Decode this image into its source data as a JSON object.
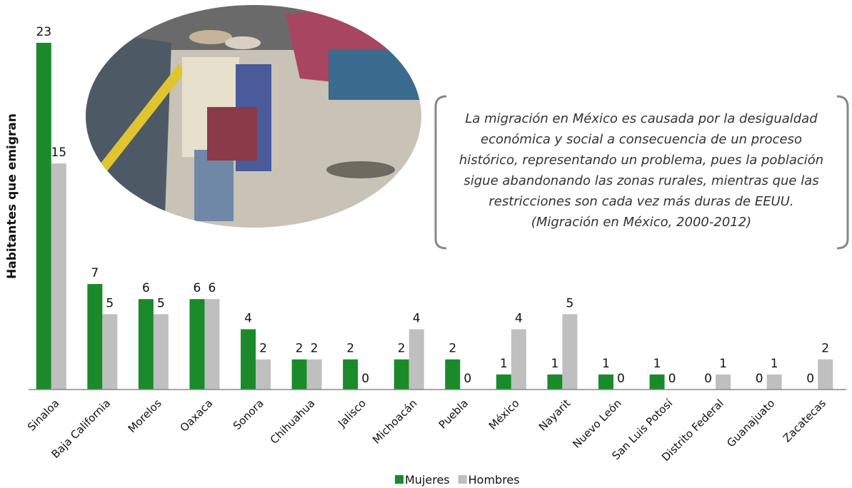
{
  "chart_data": {
    "type": "bar",
    "y_label": "Habitantes que emigran",
    "categories": [
      "Sinaloa",
      "Baja California",
      "Morelos",
      "Oaxaca",
      "Sonora",
      "Chihuahua",
      "Jalisco",
      "Michoacán",
      "Puebla",
      "México",
      "Nayarit",
      "Nuevo León",
      "San Luis Potosí",
      "Distrito Federal",
      "Guanajuato",
      "Zacatecas"
    ],
    "series": [
      {
        "name": "Mujeres",
        "color": "#1a8a2a",
        "values": [
          23,
          7,
          6,
          6,
          4,
          2,
          2,
          2,
          2,
          1,
          1,
          1,
          1,
          0,
          0,
          0
        ]
      },
      {
        "name": "Hombres",
        "color": "#bfbfbf",
        "values": [
          15,
          5,
          5,
          6,
          2,
          2,
          0,
          4,
          0,
          4,
          5,
          0,
          0,
          1,
          1,
          2
        ]
      }
    ],
    "annotation": [
      "La migración en México es causada por la desigualdad",
      "económica y social a consecuencia de un proceso",
      "histórico, representando un problema, pues la población",
      "sigue abandonando las zonas rurales, mientras que las",
      "restricciones son cada vez más duras de EEUU.",
      "(Migración en México, 2000-2012)"
    ]
  }
}
